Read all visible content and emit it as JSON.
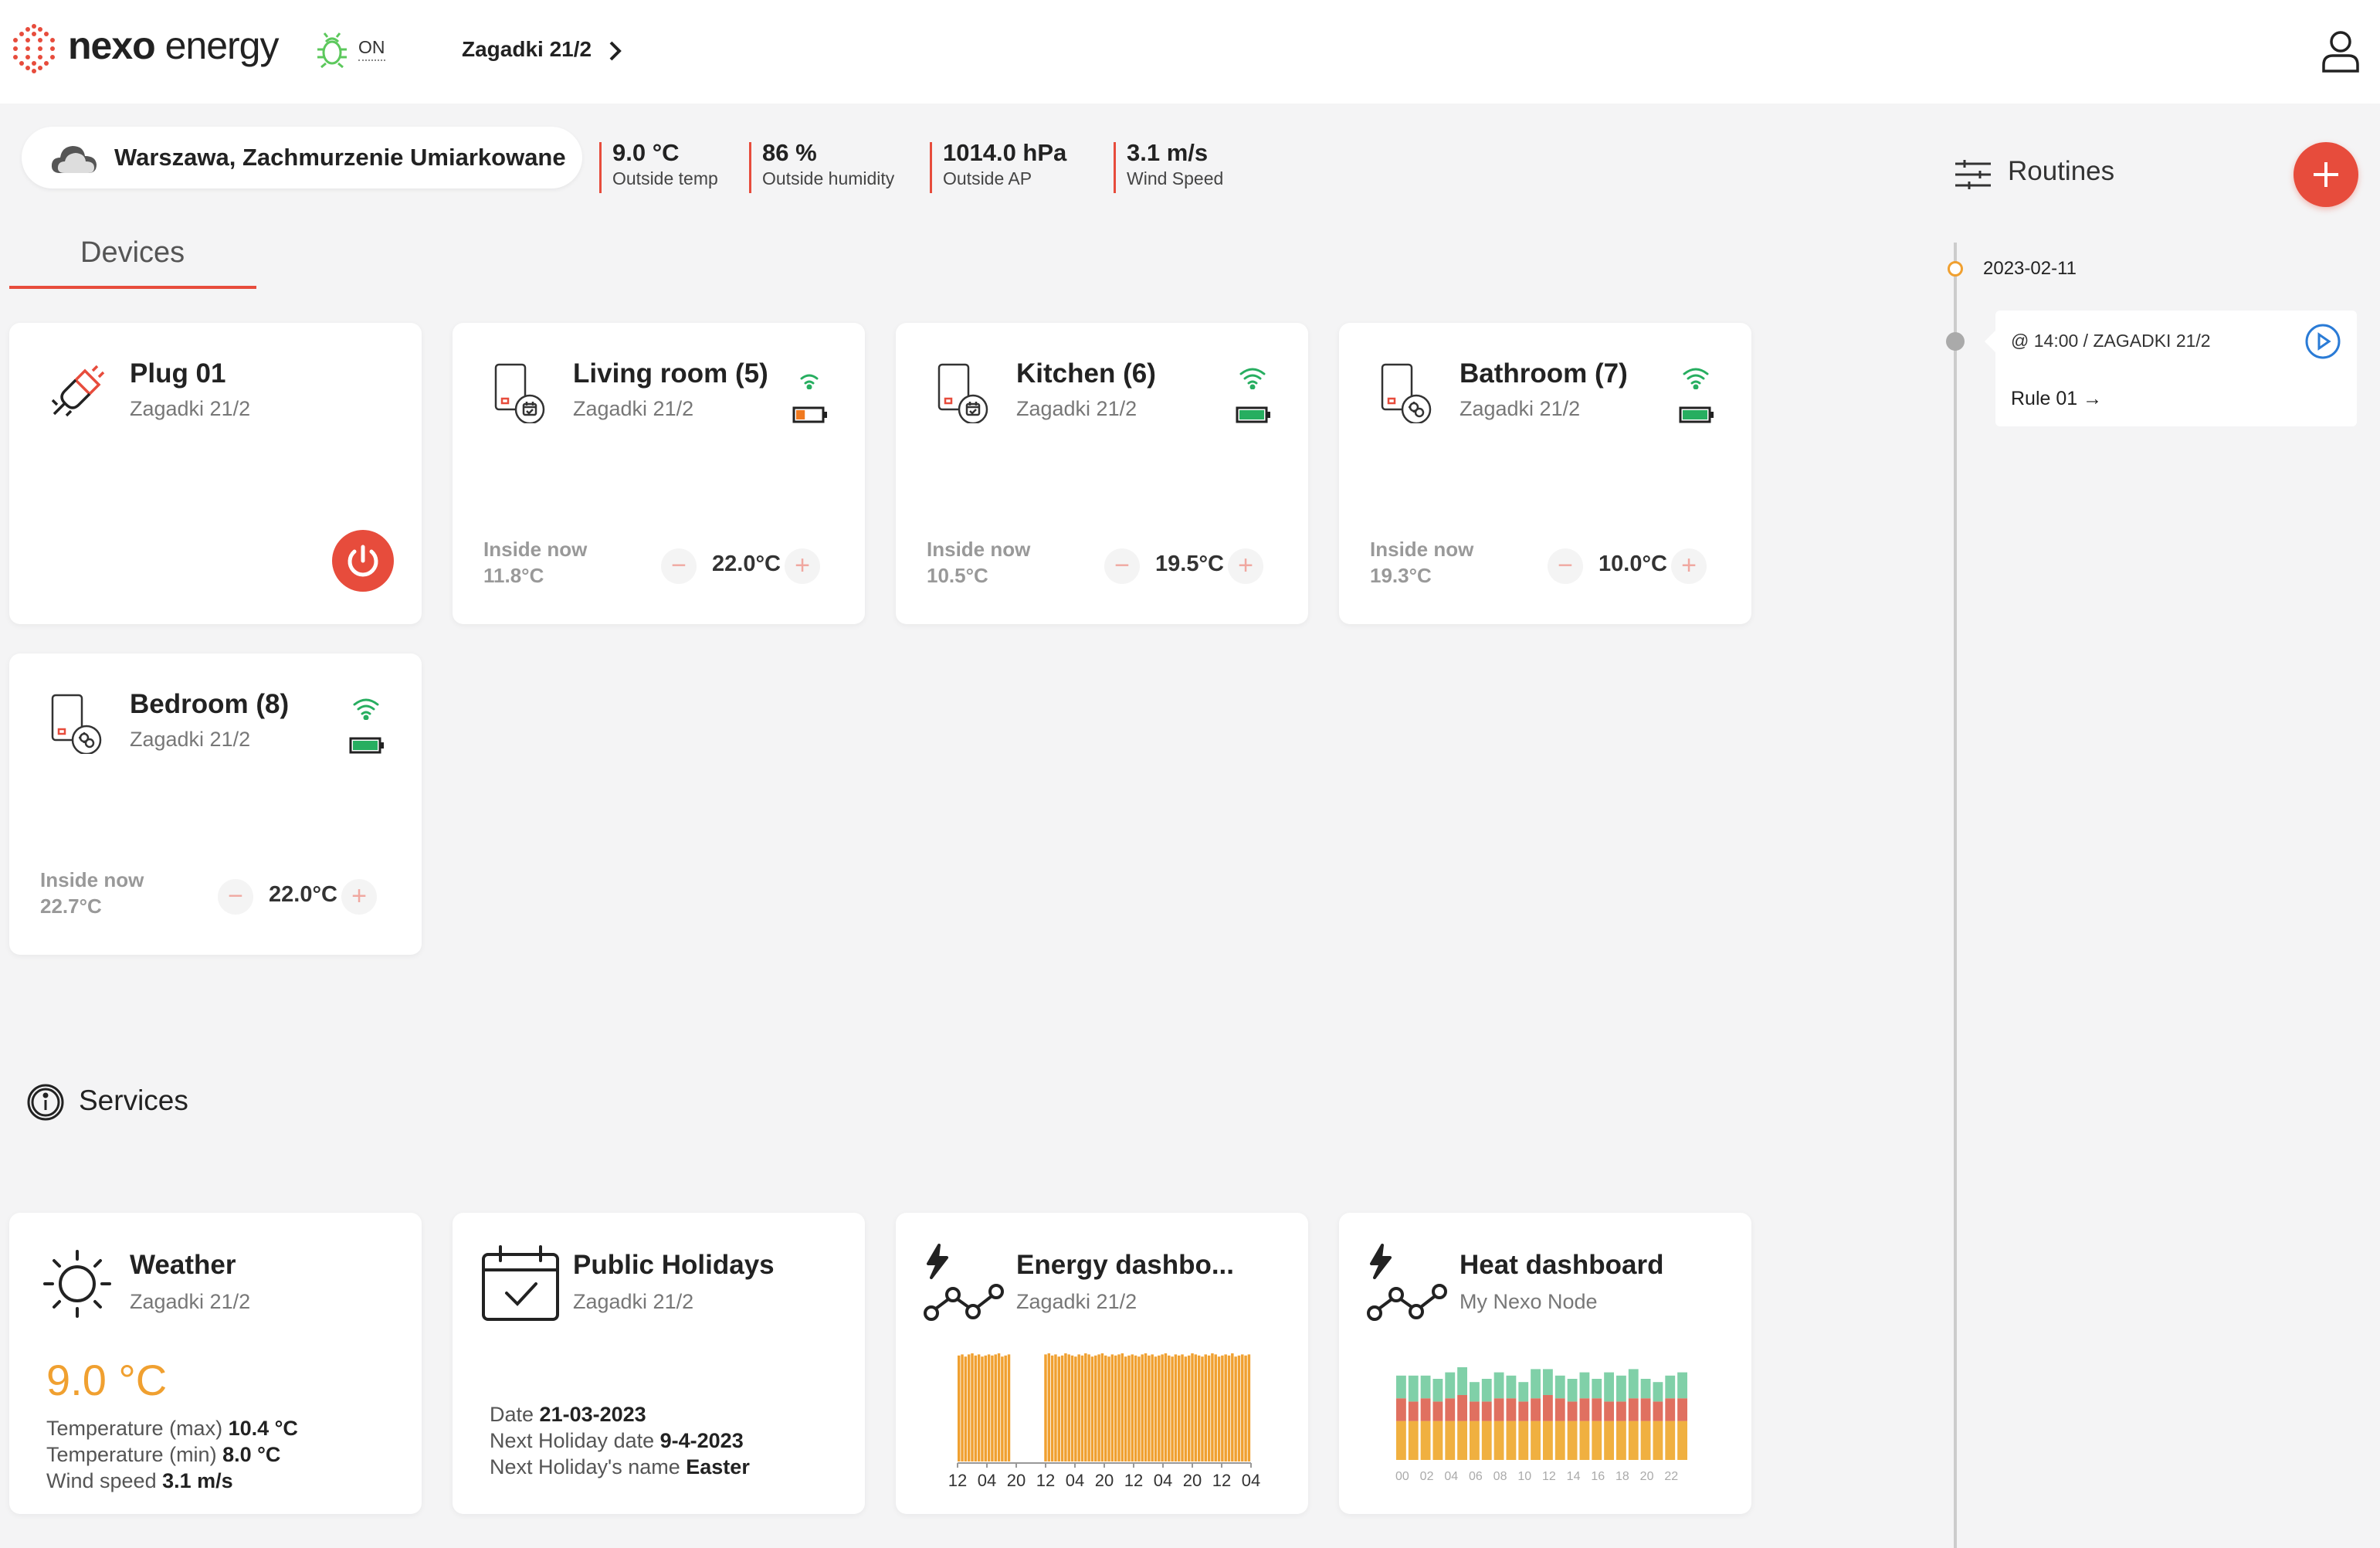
{
  "header": {
    "brand_a": "nexo",
    "brand_b": " energy",
    "status": "ON",
    "location": "Zagadki 21/2"
  },
  "weather": {
    "summary": "Warszawa, Zachmurzenie Umiarkowane",
    "metrics": [
      {
        "value": "9.0 °C",
        "label": "Outside temp"
      },
      {
        "value": "86 %",
        "label": "Outside humidity"
      },
      {
        "value": "1014.0 hPa",
        "label": "Outside AP"
      },
      {
        "value": "3.1 m/s",
        "label": "Wind Speed"
      }
    ]
  },
  "tabs": {
    "devices": "Devices"
  },
  "devices": [
    {
      "title": "Plug 01",
      "sub": "Zagadki 21/2"
    },
    {
      "title": "Living room (5)",
      "sub": "Zagadki 21/2",
      "inside_label": "Inside now",
      "inside": "11.8°C",
      "setpoint": "22.0°C",
      "battery": 0.35,
      "battery_color": "#f07a20"
    },
    {
      "title": "Kitchen (6)",
      "sub": "Zagadki 21/2",
      "inside_label": "Inside now",
      "inside": "10.5°C",
      "setpoint": "19.5°C",
      "battery": 1.0,
      "battery_color": "#27ae60"
    },
    {
      "title": "Bathroom (7)",
      "sub": "Zagadki 21/2",
      "inside_label": "Inside now",
      "inside": "19.3°C",
      "setpoint": "10.0°C",
      "battery": 1.0,
      "battery_color": "#27ae60"
    },
    {
      "title": "Bedroom (8)",
      "sub": "Zagadki 21/2",
      "inside_label": "Inside now",
      "inside": "22.7°C",
      "setpoint": "22.0°C",
      "battery": 1.0,
      "battery_color": "#27ae60"
    }
  ],
  "controls": {
    "minus": "−",
    "plus": "+"
  },
  "services_header": "Services",
  "services": {
    "weather": {
      "title": "Weather",
      "sub": "Zagadki 21/2",
      "temp": "9.0 °C",
      "max_label": "Temperature (max) ",
      "max": "10.4 °C",
      "min_label": "Temperature (min) ",
      "min": "8.0 °C",
      "wind_label": "Wind speed ",
      "wind": "3.1 m/s"
    },
    "holidays": {
      "title": "Public Holidays",
      "sub": "Zagadki 21/2",
      "date_label": "Date ",
      "date": "21-03-2023",
      "next_label": "Next Holiday date ",
      "next": "9-4-2023",
      "name_label": "Next Holiday's name ",
      "name": "Easter"
    },
    "energy": {
      "title": "Energy dashbo...",
      "sub": "Zagadki 21/2"
    },
    "heat": {
      "title": "Heat dashboard",
      "sub": "My Nexo Node"
    }
  },
  "chart_data": [
    {
      "type": "bar",
      "title": "",
      "x_ticks": [
        "12",
        "04",
        "20",
        "12",
        "04",
        "20",
        "12",
        "04",
        "20",
        "12",
        "04"
      ],
      "colors": [
        "#f0a030"
      ],
      "series": [
        {
          "values": [
            0.98,
            0.99,
            0.97,
            0.99,
            1.0,
            0.98,
            0.99,
            0.97,
            0.98,
            0.99,
            0.98,
            0.99,
            1.0,
            0.97,
            0.98,
            0.99,
            0,
            0,
            0,
            0,
            0,
            0,
            0,
            0,
            0,
            0,
            0.99,
            1.0,
            0.98,
            0.99,
            0.97,
            0.98,
            1.0,
            0.99,
            0.98,
            0.97,
            0.99,
            0.98,
            1.0,
            0.99,
            0.97,
            0.98,
            0.99,
            1.0,
            0.98,
            0.97,
            0.99,
            0.98,
            0.99,
            1.0,
            0.97,
            0.98,
            0.99,
            0.98,
            0.97,
            0.99,
            1.0,
            0.98,
            0.99,
            0.97,
            0.98,
            0.99,
            1.0,
            0.98,
            0.97,
            0.99,
            0.98,
            0.99,
            0.97,
            0.98,
            1.0,
            0.99,
            0.98,
            0.97,
            0.99,
            0.98,
            1.0,
            0.99,
            0.97,
            0.98,
            0.99,
            0.98,
            1.0,
            0.97,
            0.98,
            0.99,
            0.98,
            0.99
          ]
        }
      ]
    },
    {
      "type": "bar",
      "title": "",
      "stacked": true,
      "x_ticks": [
        "00",
        "02",
        "04",
        "06",
        "08",
        "10",
        "12",
        "14",
        "16",
        "18",
        "20",
        "22"
      ],
      "colors": [
        "#f0b040",
        "#e07060",
        "#80d0a8"
      ],
      "series": [
        {
          "values": [
            12,
            12,
            12,
            12,
            12,
            12,
            12,
            12,
            12,
            12,
            12,
            12,
            12,
            12,
            12,
            12,
            12,
            12,
            12,
            12,
            12,
            12,
            12,
            12
          ]
        },
        {
          "values": [
            7,
            6,
            7,
            6,
            7,
            8,
            6,
            6,
            7,
            7,
            6,
            7,
            8,
            7,
            6,
            7,
            7,
            6,
            6,
            7,
            7,
            6,
            7,
            7
          ]
        },
        {
          "values": [
            7,
            8,
            7,
            7,
            8,
            10,
            6,
            7,
            8,
            7,
            6,
            9,
            8,
            7,
            7,
            8,
            6,
            9,
            8,
            9,
            6,
            6,
            7,
            8
          ]
        }
      ]
    }
  ],
  "routines": {
    "title": "Routines",
    "date": "2023-02-11",
    "rule_time": "@ 14:00 / ZAGADKI 21/2",
    "rule_name": "Rule 01 →"
  }
}
